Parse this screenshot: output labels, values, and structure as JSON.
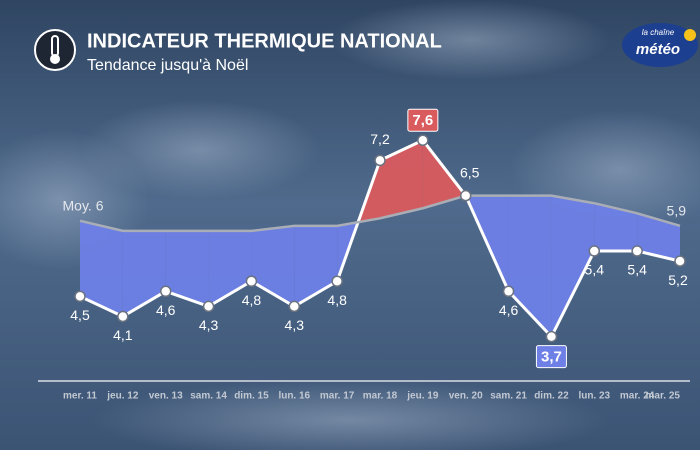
{
  "chart_data": {
    "type": "line",
    "title": "INDICATEUR THERMIQUE NATIONAL",
    "subtitle": "Tendance jusqu'à Noël",
    "logo": {
      "top": "la chaîne",
      "bottom": "météo"
    },
    "categories": [
      "mer. 11",
      "jeu. 12",
      "ven. 13",
      "sam. 14",
      "dim. 15",
      "lun. 16",
      "mar. 17",
      "mar. 18",
      "jeu. 19",
      "ven. 20",
      "sam. 21",
      "dim. 22",
      "lun. 23",
      "mar. 24",
      "mar. 25"
    ],
    "series": [
      {
        "color": "#ffffff",
        "values": [
          4.5,
          4.1,
          4.6,
          4.3,
          4.8,
          4.3,
          4.8,
          7.2,
          7.6,
          6.5,
          4.6,
          3.7,
          5.4,
          5.4,
          5.2
        ],
        "value_labels": [
          "4,5",
          "4,1",
          "4,6",
          "4,3",
          "4,8",
          "4,3",
          "4,8",
          "7,2",
          "7,6",
          "6,5",
          "4,6",
          "3,7",
          "5,4",
          "5,4",
          "5,2"
        ]
      },
      {
        "color": "#a9adb5",
        "values": [
          6.0,
          5.8,
          5.8,
          5.8,
          5.8,
          5.9,
          5.9,
          6.05,
          6.25,
          6.5,
          6.5,
          6.5,
          6.35,
          6.15,
          5.9
        ],
        "value_labels": [
          "Moy. 6",
          null,
          null,
          null,
          null,
          null,
          null,
          null,
          null,
          null,
          null,
          null,
          null,
          null,
          "5,9"
        ]
      }
    ],
    "above_color": "#d95b5e",
    "below_color": "#6e7fe6",
    "ylim": [
      2.6,
      8.4
    ]
  }
}
